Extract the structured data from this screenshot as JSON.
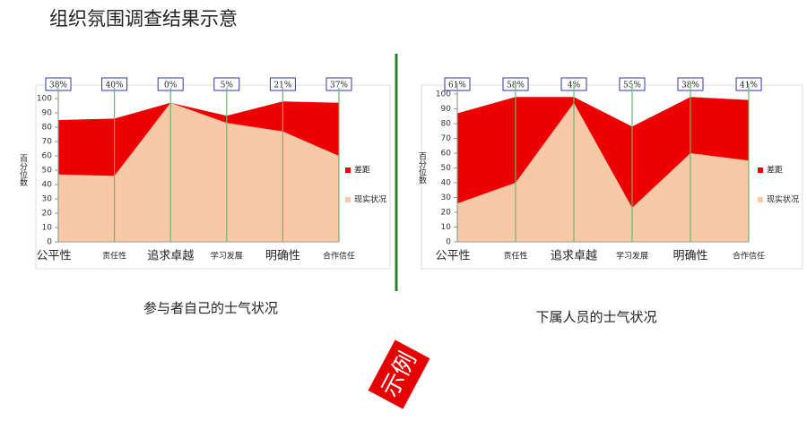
{
  "title": "组织氛围调查结果示意",
  "stamp": "示例",
  "chart_data": [
    {
      "type": "stacked-area",
      "caption": "参与者自己的士气状况",
      "ylabel": "百分位数",
      "categories": [
        "公平性",
        "责任性",
        "追求卓越",
        "学习发展",
        "明确性",
        "合作信任"
      ],
      "ylim": [
        0,
        100
      ],
      "yticks": [
        0,
        10,
        20,
        30,
        40,
        50,
        60,
        70,
        80,
        90,
        100
      ],
      "series": [
        {
          "name": "现实状况",
          "color": "#f8c9a6",
          "values": [
            47,
            46,
            97,
            83,
            77,
            60
          ]
        },
        {
          "name": "差距",
          "color": "#ee0000",
          "values": [
            38,
            40,
            0,
            5,
            21,
            37
          ],
          "value_labels": [
            "38%",
            "40%",
            "0%",
            "5%",
            "21%",
            "37%"
          ]
        }
      ]
    },
    {
      "type": "stacked-area",
      "caption": "下属人员的士气状况",
      "ylabel": "百分位数",
      "categories": [
        "公平性",
        "责任性",
        "追求卓越",
        "学习发展",
        "明确性",
        "合作信任"
      ],
      "ylim": [
        0,
        100
      ],
      "yticks": [
        0,
        10,
        20,
        30,
        40,
        50,
        60,
        70,
        80,
        90,
        100
      ],
      "series": [
        {
          "name": "现实状况",
          "color": "#f8c9a6",
          "values": [
            26,
            40,
            94,
            23,
            60,
            55
          ]
        },
        {
          "name": "差距",
          "color": "#ee0000",
          "values": [
            61,
            58,
            4,
            55,
            38,
            41
          ],
          "value_labels": [
            "61%",
            "58%",
            "4%",
            "55%",
            "38%",
            "41%"
          ]
        }
      ]
    }
  ]
}
